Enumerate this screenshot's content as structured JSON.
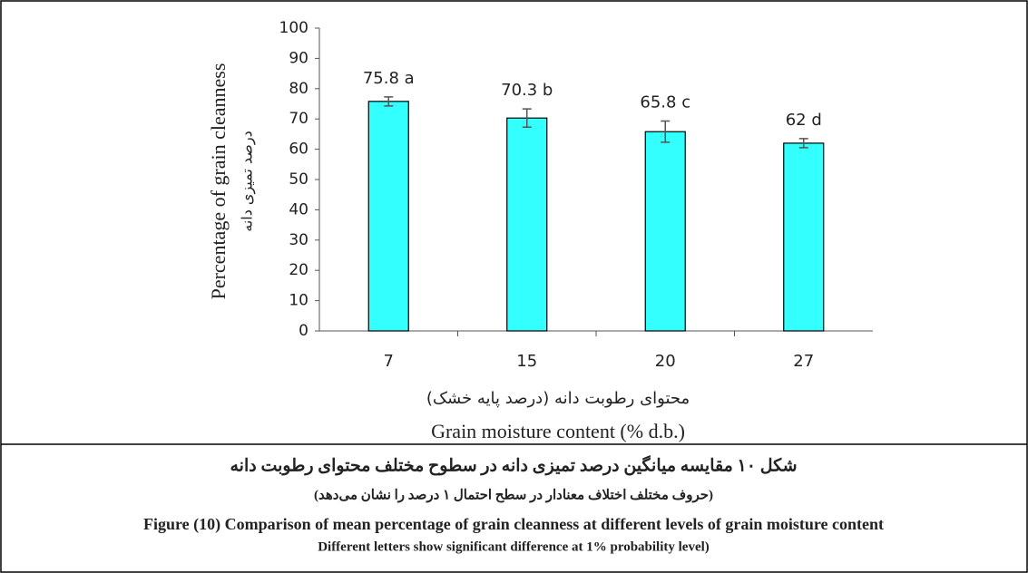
{
  "chart_data": {
    "type": "bar",
    "y_label": "Percentage of grain cleanness",
    "y_label_fa": "درصد تمیزی دانه",
    "x_label_fa": "محتوای رطوبت دانه (درصد پایه خشک)",
    "x_label": "Grain moisture content (% d.b.)",
    "categories": [
      "7",
      "15",
      "20",
      "27"
    ],
    "values": [
      75.8,
      70.3,
      65.8,
      62
    ],
    "value_labels": [
      "75.8 a",
      "70.3 b",
      "65.8 c",
      "62 d"
    ],
    "errors": [
      1.5,
      3,
      3.5,
      1.5
    ],
    "color": "#33ffff",
    "ylim": [
      0,
      100
    ],
    "yticks": [
      0,
      10,
      20,
      30,
      40,
      50,
      60,
      70,
      80,
      90,
      100
    ]
  },
  "caption": {
    "title_fa": "شکل ۱۰ مقایسه میانگین درصد تمیزی دانه در سطوح مختلف محتوای رطوبت دانه",
    "note_fa": "(حروف مختلف اختلاف معنادار در سطح احتمال ۱ درصد را نشان می‌دهد)",
    "title_en": "Figure (10) Comparison of mean percentage of grain cleanness at different levels of grain moisture content",
    "note_en": "Different letters show significant difference at 1% probability level)"
  }
}
